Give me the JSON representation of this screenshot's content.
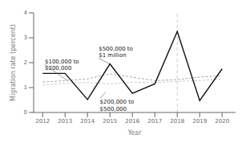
{
  "chart_data": {
    "type": "line",
    "xlabel": "Year",
    "ylabel": "Migration rate (percent)",
    "x": [
      2012,
      2013,
      2014,
      2015,
      2016,
      2017,
      2018,
      2019,
      2020
    ],
    "series": [
      {
        "color": "#aaaaaa",
        "line_style": "dashed",
        "values": [
          1.22,
          1.28,
          1.35,
          1.55,
          1.42,
          1.28,
          1.32,
          1.42,
          1.48
        ]
      },
      {
        "color": "#cccccc",
        "line_style": "dashed",
        "values": [
          1.1,
          1.18,
          1.2,
          1.15,
          1.22,
          1.2,
          1.25,
          1.28,
          1.35
        ]
      },
      {
        "color": "#111111",
        "line_style": "solid",
        "values": [
          1.57,
          1.57,
          0.52,
          1.95,
          0.77,
          1.15,
          3.25,
          0.48,
          1.75
        ]
      }
    ],
    "xlim": [
      2011.6,
      2020.6
    ],
    "xticks": [
      2012,
      2013,
      2014,
      2015,
      2016,
      2017,
      2018,
      2019,
      2020
    ],
    "ylim": [
      0,
      4
    ],
    "yticks": [
      0,
      1,
      2,
      3,
      4
    ],
    "grid": false,
    "vlines": [
      2018
    ],
    "annotations": [
      {
        "text": "$100,000 to\n$200,000",
        "x": 2013.1,
        "y": 1.28
      },
      {
        "text": "$200,000 to\n$500,000",
        "x": 2014.8,
        "y": 0.8
      },
      {
        "text": "$500,000 to\n$1 million",
        "x": 2015.0,
        "y": 1.95
      }
    ]
  }
}
